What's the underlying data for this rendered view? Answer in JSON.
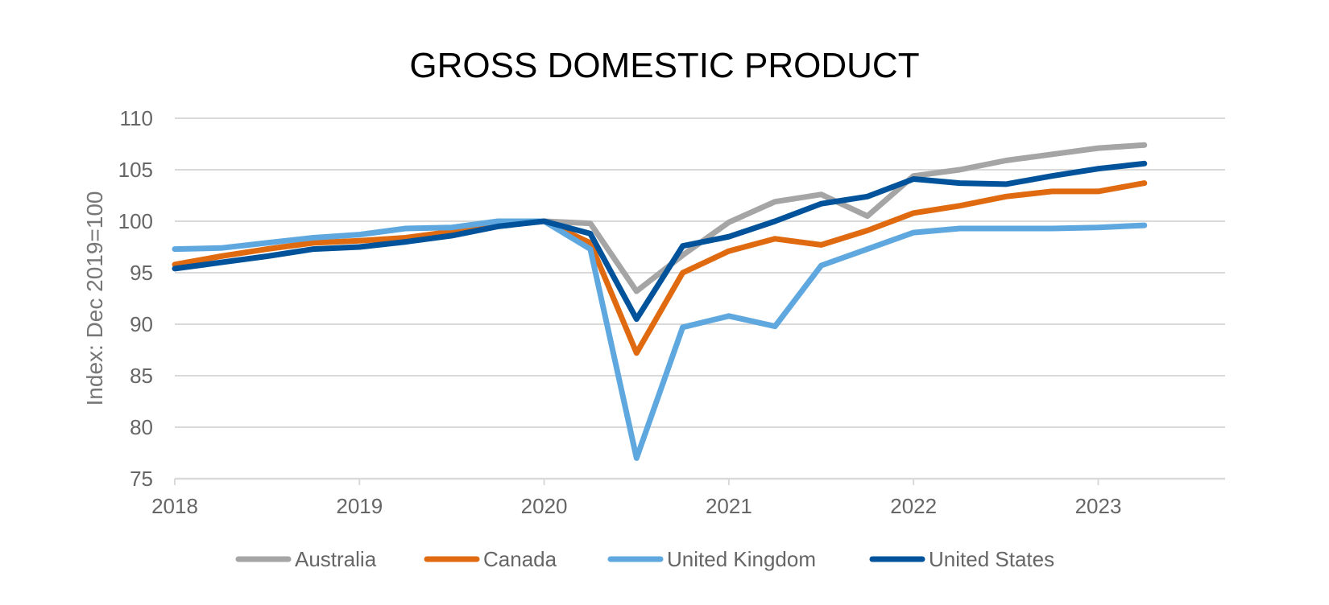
{
  "chart_data": {
    "type": "line",
    "title": "GROSS DOMESTIC PRODUCT",
    "xlabel": "",
    "ylabel": "Index: Dec 2019=100",
    "ylim": [
      75,
      110
    ],
    "yticks": [
      110,
      105,
      100,
      95,
      90,
      85,
      80,
      75
    ],
    "xlim": [
      2018.0,
      2023.75
    ],
    "xticks": [
      "2018",
      "2019",
      "2020",
      "2021",
      "2022",
      "2023"
    ],
    "grid": "horizontal",
    "legend_position": "bottom",
    "x": [
      2018.0,
      2018.25,
      2018.5,
      2018.75,
      2019.0,
      2019.25,
      2019.5,
      2019.75,
      2020.0,
      2020.25,
      2020.5,
      2020.75,
      2021.0,
      2021.25,
      2021.5,
      2021.75,
      2022.0,
      2022.25,
      2022.5,
      2022.75,
      2023.0,
      2023.25
    ],
    "series": [
      {
        "name": "Australia",
        "color": "#A5A5A5",
        "values": [
          null,
          null,
          null,
          null,
          null,
          null,
          null,
          null,
          100.0,
          99.8,
          93.2,
          96.7,
          99.9,
          101.9,
          102.6,
          100.5,
          104.4,
          105.0,
          105.9,
          106.5,
          107.1,
          107.4
        ]
      },
      {
        "name": "Canada",
        "color": "#E06A10",
        "values": [
          95.8,
          96.6,
          97.3,
          97.9,
          98.1,
          98.4,
          99.0,
          99.6,
          100.0,
          97.9,
          87.2,
          95.0,
          97.1,
          98.3,
          97.7,
          99.1,
          100.8,
          101.5,
          102.4,
          102.9,
          102.9,
          103.7
        ]
      },
      {
        "name": "United Kingdom",
        "color": "#5FA8DF",
        "values": [
          97.3,
          97.4,
          97.9,
          98.4,
          98.7,
          99.3,
          99.4,
          100.0,
          100.0,
          97.3,
          77.0,
          89.7,
          90.8,
          89.8,
          95.7,
          97.3,
          98.9,
          99.3,
          99.3,
          99.3,
          99.4,
          99.6
        ]
      },
      {
        "name": "United States",
        "color": "#00539A",
        "values": [
          95.4,
          96.0,
          96.6,
          97.3,
          97.5,
          98.0,
          98.6,
          99.5,
          100.0,
          98.8,
          90.5,
          97.6,
          98.5,
          100.0,
          101.7,
          102.4,
          104.1,
          103.7,
          103.6,
          104.4,
          105.1,
          105.6
        ]
      }
    ]
  }
}
